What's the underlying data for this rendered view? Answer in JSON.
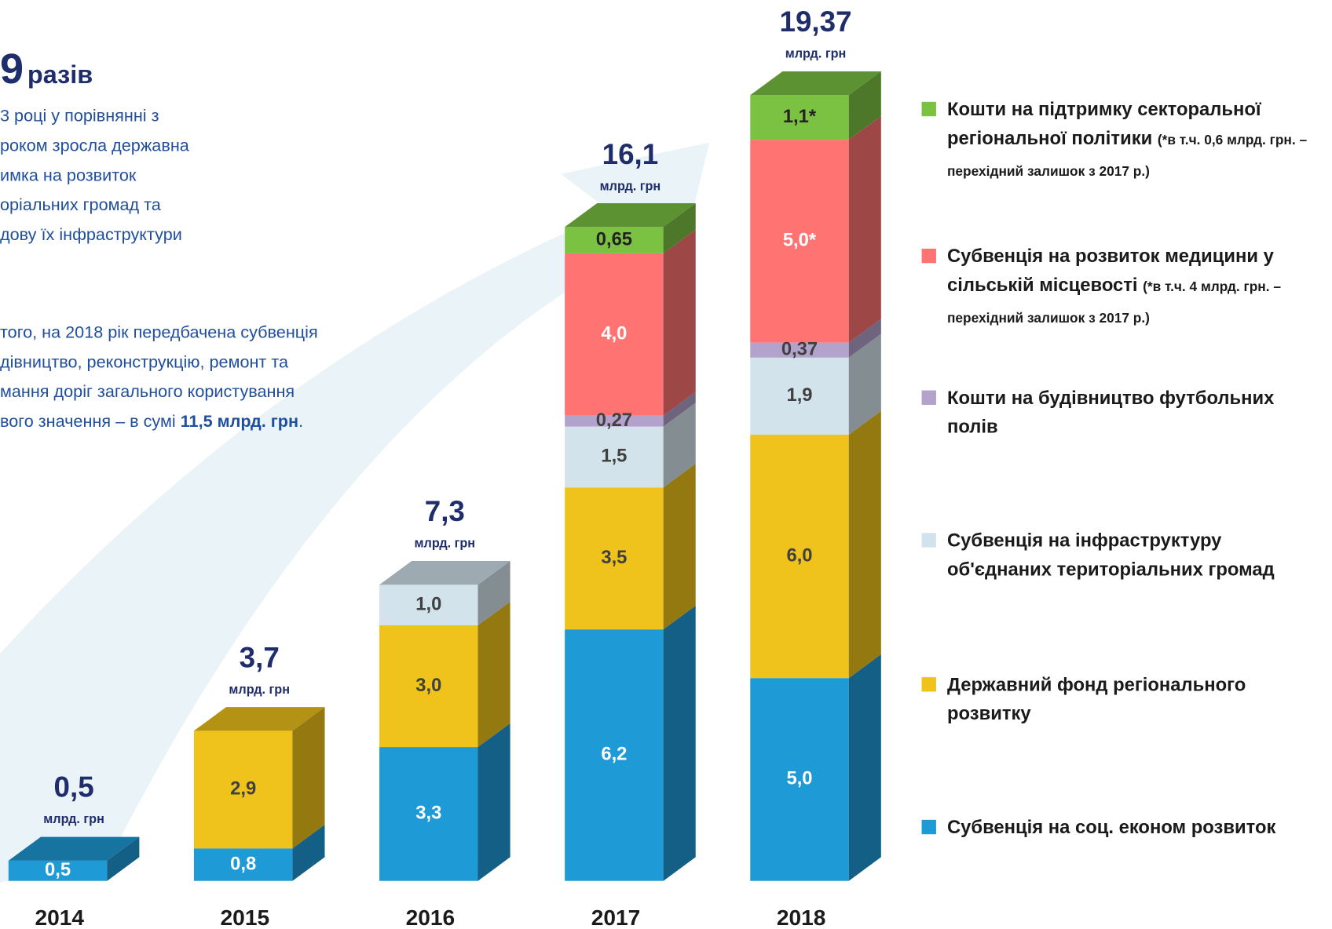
{
  "chart_data": {
    "type": "bar",
    "stacked": true,
    "categories": [
      "2014",
      "2015",
      "2016",
      "2017",
      "2018"
    ],
    "series": [
      {
        "name": "Субвенція на соц. економ розвиток",
        "color": "#1e9ad6",
        "label_color": "#ffffff",
        "values": [
          0.5,
          0.8,
          3.3,
          6.2,
          5.0
        ],
        "value_labels": [
          "0,5",
          "0,8",
          "3,3",
          "6,2",
          "5,0"
        ]
      },
      {
        "name": "Державний фонд регіонального розвитку",
        "color": "#efc31b",
        "label_color": "#404040",
        "values": [
          null,
          2.9,
          3.0,
          3.5,
          6.0
        ],
        "value_labels": [
          null,
          "2,9",
          "3,0",
          "3,5",
          "6,0"
        ]
      },
      {
        "name": "Субвенція на інфраструктуру  об'єднаних територіальних громад",
        "color": "#d3e3ec",
        "label_color": "#404040",
        "values": [
          null,
          null,
          1.0,
          1.5,
          1.9
        ],
        "value_labels": [
          null,
          null,
          "1,0",
          "1,5",
          "1,9"
        ]
      },
      {
        "name": "Кошти на будівництво футбольних полів",
        "color": "#b3a2cc",
        "label_color": "#404040",
        "values": [
          null,
          null,
          null,
          0.27,
          0.37
        ],
        "value_labels": [
          null,
          null,
          null,
          "0,27",
          "0,37"
        ]
      },
      {
        "name": "Субвенція на розвиток медицини у сільській місцевості",
        "note": "(*в т.ч. 4 млрд. грн. – перехідний залишок з 2017 р.)",
        "color": "#ff7373",
        "label_color": "#ffffff",
        "values": [
          null,
          null,
          null,
          4.0,
          5.0
        ],
        "value_labels": [
          null,
          null,
          null,
          "4,0",
          "5,0*"
        ]
      },
      {
        "name": "Кошти на підтримку секторальної регіональної політики",
        "note": "(*в т.ч. 0,6 млрд. грн. – перехідний залишок з 2017 р.)",
        "color": "#7cc242",
        "label_color": "#222222",
        "values": [
          null,
          null,
          null,
          0.65,
          1.1
        ],
        "value_labels": [
          null,
          null,
          null,
          "0,65",
          "1,1*"
        ]
      }
    ],
    "totals": [
      0.5,
      3.7,
      7.3,
      16.1,
      19.37
    ],
    "total_labels": [
      "0,5",
      "3,7",
      "7,3",
      "16,1",
      "19,37"
    ],
    "total_unit": "млрд. грн"
  },
  "intro": {
    "big": "9",
    "unit": "разів",
    "lines": [
      "3 році у порівнянні з",
      "роком зросла державна",
      "имка на розвиток",
      "оріальних громад та",
      "дову їх інфраструктури"
    ]
  },
  "note": {
    "lines": [
      "того, на 2018 рік передбачена субвенція",
      "дівництво, реконструкцію, ремонт та",
      "мання доріг  загального користування"
    ],
    "last_line": [
      "вого значення – в сумі ",
      "11,5 млрд. грн",
      "."
    ]
  }
}
